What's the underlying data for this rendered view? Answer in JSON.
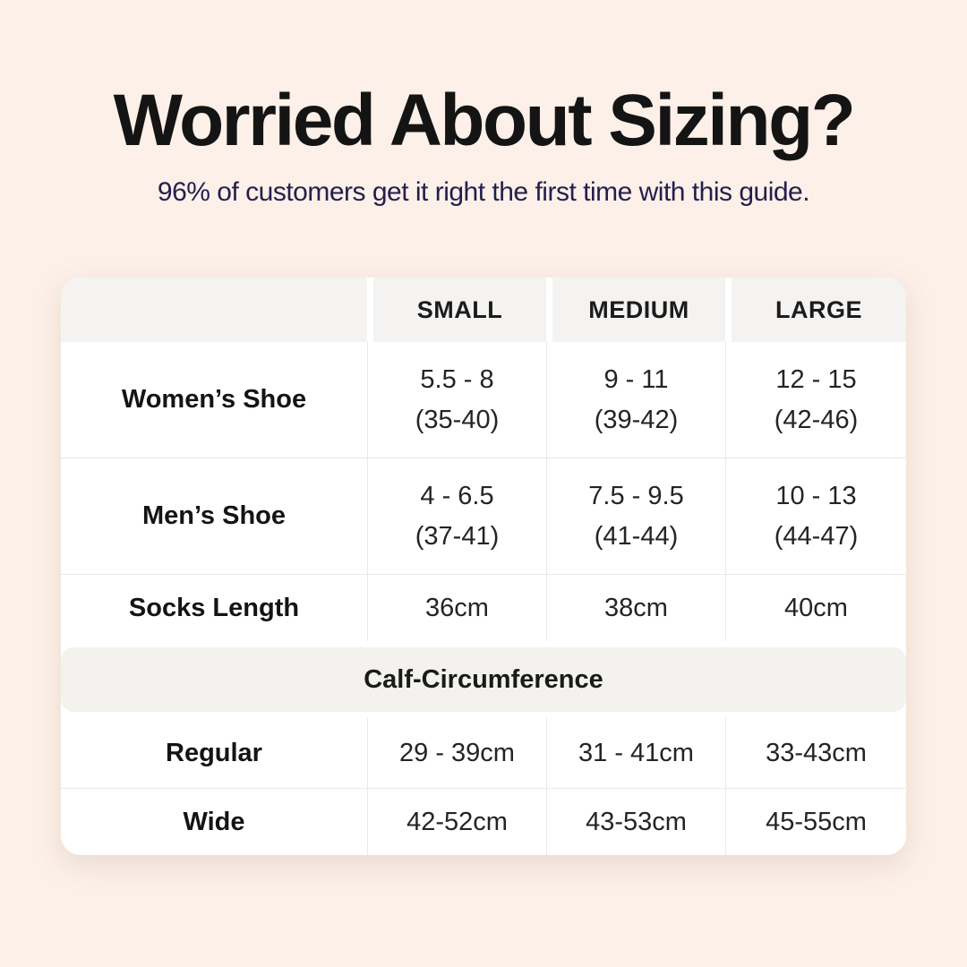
{
  "page": {
    "title": "Worried About Sizing?",
    "subtitle": "96% of customers get it right the first time with this guide."
  },
  "colors": {
    "background": "#fcf0e8",
    "card": "#ffffff",
    "header_cell_fill": "#f4f3f1",
    "section_band_fill": "#f3f2ef",
    "divider": "#ebe9e6",
    "title_text": "#141414",
    "subtitle_text": "#241e4e",
    "body_text": "#242424"
  },
  "chart_data": {
    "type": "table",
    "title": "Worried About Sizing?",
    "subtitle": "96% of customers get it right the first time with this guide.",
    "columns": [
      "",
      "SMALL",
      "MEDIUM",
      "LARGE"
    ],
    "rows": [
      {
        "label": "Women’s Shoe",
        "small": [
          "5.5 - 8",
          "(35-40)"
        ],
        "medium": [
          "9 - 11",
          "(39-42)"
        ],
        "large": [
          "12 - 15",
          "(42-46)"
        ]
      },
      {
        "label": "Men’s Shoe",
        "small": [
          "4 - 6.5",
          "(37-41)"
        ],
        "medium": [
          "7.5 - 9.5",
          "(41-44)"
        ],
        "large": [
          "10 - 13",
          "(44-47)"
        ]
      },
      {
        "label": "Socks Length",
        "small": [
          "36cm"
        ],
        "medium": [
          "38cm"
        ],
        "large": [
          "40cm"
        ]
      }
    ],
    "section_header": "Calf-Circumference",
    "section_rows": [
      {
        "label": "Regular",
        "small": [
          "29 - 39cm"
        ],
        "medium": [
          "31 - 41cm"
        ],
        "large": [
          "33-43cm"
        ]
      },
      {
        "label": "Wide",
        "small": [
          "42-52cm"
        ],
        "medium": [
          "43-53cm"
        ],
        "large": [
          "45-55cm"
        ]
      }
    ],
    "layout": {
      "legend": false,
      "grid": true,
      "section_band_position": "between Socks Length and Regular rows"
    }
  }
}
